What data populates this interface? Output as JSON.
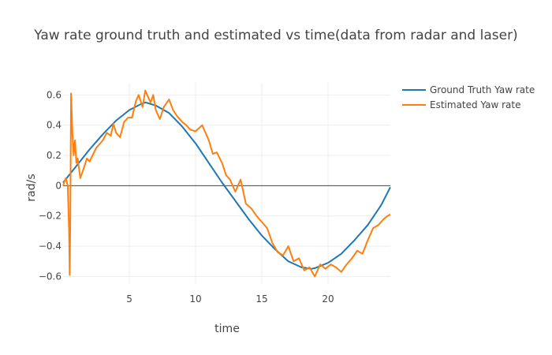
{
  "chart_data": {
    "type": "line",
    "title": "Yaw rate ground truth and estimated vs time(data from radar and laser)",
    "xlabel": "time",
    "ylabel": "rad/s",
    "xlim": [
      0,
      24.7
    ],
    "ylim": [
      -0.65,
      0.68
    ],
    "xticks": [
      5,
      10,
      15,
      20
    ],
    "yticks": [
      -0.6,
      -0.4,
      -0.2,
      0,
      0.2,
      0.4,
      0.6
    ],
    "grid": true,
    "legend_position": "right",
    "colors": {
      "ground_truth": "#1f77b4",
      "estimated": "#ff7f0e",
      "grid": "#eeeeee",
      "zero_line": "#444444"
    },
    "series": [
      {
        "name": "Ground Truth Yaw rate",
        "x": [
          0,
          1,
          2,
          3,
          4,
          5,
          6,
          6.25,
          7,
          8,
          9,
          10,
          11,
          12,
          12.5,
          13,
          14,
          15,
          16,
          17,
          18,
          18.75,
          19,
          20,
          21,
          22,
          23,
          24,
          24.7
        ],
        "values": [
          0.02,
          0.13,
          0.24,
          0.34,
          0.43,
          0.5,
          0.545,
          0.55,
          0.53,
          0.48,
          0.39,
          0.28,
          0.15,
          0.02,
          -0.04,
          -0.1,
          -0.22,
          -0.33,
          -0.42,
          -0.5,
          -0.54,
          -0.55,
          -0.545,
          -0.51,
          -0.45,
          -0.36,
          -0.26,
          -0.13,
          -0.01
        ]
      },
      {
        "name": "Estimated Yaw rate",
        "x": [
          0,
          0.2,
          0.35,
          0.45,
          0.5,
          0.55,
          0.6,
          0.7,
          0.8,
          0.9,
          1.0,
          1.1,
          1.3,
          1.5,
          1.8,
          2.0,
          2.5,
          3.0,
          3.3,
          3.6,
          3.8,
          4.0,
          4.3,
          4.6,
          4.9,
          5.2,
          5.5,
          5.7,
          6.0,
          6.2,
          6.4,
          6.6,
          6.8,
          7.0,
          7.3,
          7.6,
          8.0,
          8.3,
          8.6,
          9.0,
          9.3,
          9.6,
          10.0,
          10.5,
          11.0,
          11.3,
          11.6,
          12.0,
          12.3,
          12.6,
          13.0,
          13.4,
          13.8,
          14.2,
          14.6,
          15.0,
          15.4,
          15.8,
          16.2,
          16.6,
          17.0,
          17.4,
          17.8,
          18.2,
          18.6,
          19.0,
          19.4,
          19.8,
          20.2,
          20.6,
          21.0,
          21.4,
          21.8,
          22.2,
          22.6,
          23.0,
          23.4,
          23.8,
          24.2,
          24.5,
          24.7
        ],
        "values": [
          0.0,
          0.05,
          0.0,
          -0.3,
          -0.59,
          -0.2,
          0.61,
          0.35,
          0.2,
          0.3,
          0.15,
          0.18,
          0.05,
          0.1,
          0.18,
          0.16,
          0.25,
          0.3,
          0.35,
          0.33,
          0.41,
          0.35,
          0.32,
          0.42,
          0.45,
          0.45,
          0.56,
          0.6,
          0.52,
          0.63,
          0.59,
          0.55,
          0.6,
          0.5,
          0.44,
          0.52,
          0.57,
          0.5,
          0.46,
          0.42,
          0.4,
          0.37,
          0.36,
          0.4,
          0.3,
          0.21,
          0.22,
          0.15,
          0.07,
          0.04,
          -0.04,
          0.04,
          -0.12,
          -0.15,
          -0.2,
          -0.24,
          -0.28,
          -0.38,
          -0.44,
          -0.46,
          -0.4,
          -0.5,
          -0.48,
          -0.56,
          -0.54,
          -0.6,
          -0.52,
          -0.55,
          -0.52,
          -0.54,
          -0.57,
          -0.52,
          -0.48,
          -0.43,
          -0.45,
          -0.36,
          -0.28,
          -0.26,
          -0.22,
          -0.2,
          -0.19
        ]
      }
    ]
  }
}
